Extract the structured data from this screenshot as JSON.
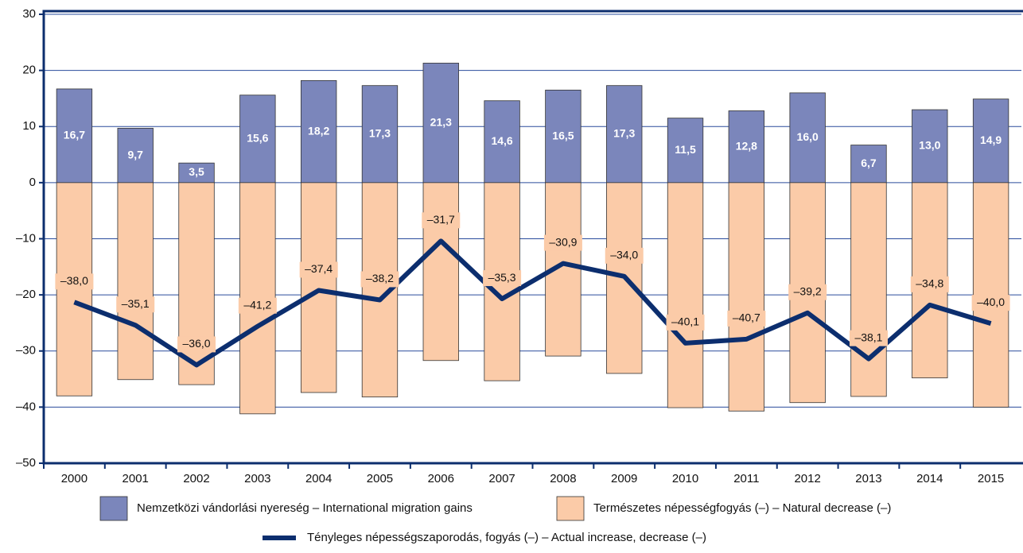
{
  "chart_data": {
    "type": "bar",
    "categories": [
      "2000",
      "2001",
      "2002",
      "2003",
      "2004",
      "2005",
      "2006",
      "2007",
      "2008",
      "2009",
      "2010",
      "2011",
      "2012",
      "2013",
      "2014",
      "2015"
    ],
    "series": [
      {
        "name": "Nemzetközi vándorlási nyereség – International migration gains",
        "color": "#7b86bb",
        "values": [
          16.7,
          9.7,
          3.5,
          15.6,
          18.2,
          17.3,
          21.3,
          14.6,
          16.5,
          17.3,
          11.5,
          12.8,
          16.0,
          6.7,
          13.0,
          14.9
        ],
        "value_labels": [
          "16,7",
          "9,7",
          "3,5",
          "15,6",
          "18,2",
          "17,3",
          "21,3",
          "14,6",
          "16,5",
          "17,3",
          "11,5",
          "12,8",
          "16,0",
          "6,7",
          "13,0",
          "14,9"
        ]
      },
      {
        "name": "Természetes népességfogyás (–) – Natural decrease (–)",
        "color": "#fbcba8",
        "values": [
          -38.0,
          -35.1,
          -36.0,
          -41.2,
          -37.4,
          -38.2,
          -31.7,
          -35.3,
          -30.9,
          -34.0,
          -40.1,
          -40.7,
          -39.2,
          -38.1,
          -34.8,
          -40.0
        ],
        "value_labels": [
          "–38,0",
          "–35,1",
          "–36,0",
          "–41,2",
          "–37,4",
          "–38,2",
          "–31,7",
          "–35,3",
          "–30,9",
          "–34,0",
          "–40,1",
          "–40,7",
          "–39,2",
          "–38,1",
          "–34,8",
          "–40,0"
        ]
      },
      {
        "name": "Tényleges népességszaporodás, fogyás (–) – Actual increase, decrease (–)",
        "color": "#0c2e6e",
        "type": "line",
        "values": [
          -21.3,
          -25.4,
          -32.5,
          -25.6,
          -19.2,
          -20.9,
          -10.4,
          -20.7,
          -14.4,
          -16.7,
          -28.6,
          -27.9,
          -23.2,
          -31.4,
          -21.8,
          -25.1
        ]
      }
    ],
    "ylim": [
      -50,
      30
    ],
    "yticks": [
      {
        "value": -50,
        "label": "–50"
      },
      {
        "value": -40,
        "label": "–40"
      },
      {
        "value": -30,
        "label": "–30"
      },
      {
        "value": -20,
        "label": "–20"
      },
      {
        "value": -10,
        "label": "–10"
      },
      0,
      10,
      20,
      30
    ],
    "grid": true
  }
}
